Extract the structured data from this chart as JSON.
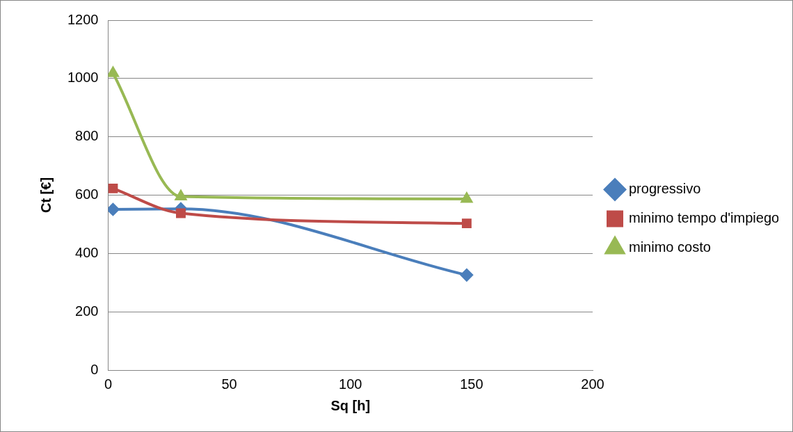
{
  "chart_data": {
    "type": "line",
    "xlabel": "Sq [h]",
    "ylabel": "Ct [€]",
    "x": [
      2,
      30,
      148
    ],
    "series": [
      {
        "name": "progressivo",
        "color": "#4a7ebb",
        "values": [
          551,
          553,
          326
        ],
        "marker": "diamond"
      },
      {
        "name": "minimo tempo d'impiego",
        "color": "#be4b48",
        "values": [
          623,
          538,
          503
        ],
        "marker": "square"
      },
      {
        "name": "minimo costo",
        "color": "#98b954",
        "values": [
          1018,
          595,
          587
        ],
        "marker": "triangle"
      }
    ],
    "xlim": [
      0,
      200
    ],
    "xticks": [
      0,
      50,
      100,
      150,
      200
    ],
    "ylim": [
      0,
      1200
    ],
    "yticks": [
      0,
      200,
      400,
      600,
      800,
      1000,
      1200
    ],
    "grid": "y",
    "legend": "right",
    "line_style": "solid"
  }
}
